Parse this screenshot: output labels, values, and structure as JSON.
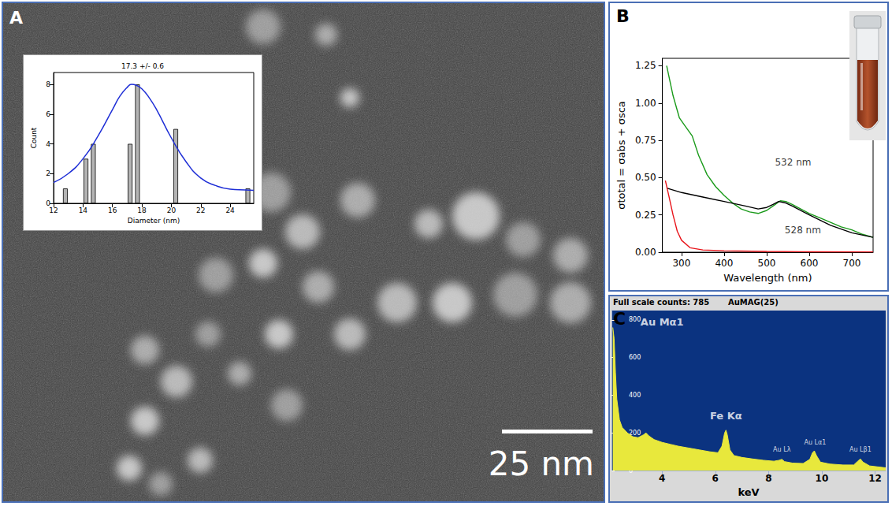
{
  "image": {
    "panel": "A",
    "scale_bar": "25 nm"
  },
  "chart_data": [
    {
      "type": "bar",
      "title": "17.3 +/- 0.6",
      "x_label": "Diameter (nm)",
      "y_label": "Count",
      "series": [
        {
          "type": "bar",
          "color": "#b4b4b4",
          "x": [
            12.8,
            14.2,
            14.7,
            17.2,
            17.7,
            20.3,
            25.2
          ],
          "values": [
            1,
            3,
            4,
            4,
            8,
            5,
            1
          ]
        },
        {
          "type": "line",
          "color": "#1f2fd6",
          "x": [
            12,
            13,
            14,
            15,
            16,
            16.5,
            17,
            17.3,
            17.6,
            18,
            18.5,
            19,
            20,
            21,
            22,
            23,
            24,
            25,
            25.6
          ],
          "values": [
            1.4,
            2.0,
            3.0,
            4.5,
            6.3,
            7.2,
            7.8,
            8.0,
            7.95,
            7.7,
            7.1,
            6.3,
            4.4,
            2.8,
            1.7,
            1.2,
            0.95,
            0.9,
            0.88
          ]
        }
      ],
      "xlim": [
        12,
        25.6
      ],
      "xticks": [
        12,
        14,
        16,
        18,
        20,
        22,
        24
      ],
      "ylim": [
        0,
        8.8
      ],
      "yticks": [
        0,
        2,
        4,
        6,
        8
      ]
    },
    {
      "type": "line",
      "panel": "B",
      "x_label": "Wavelength (nm)",
      "y_label": "σtotal = σabs + σsca",
      "series": [
        {
          "color": "#1a9a1a",
          "x": [
            265,
            280,
            295,
            310,
            325,
            340,
            360,
            380,
            400,
            420,
            440,
            460,
            480,
            500,
            515,
            532,
            545,
            560,
            580,
            600,
            625,
            650,
            675,
            700,
            725,
            750
          ],
          "values": [
            1.25,
            1.05,
            0.9,
            0.84,
            0.78,
            0.65,
            0.52,
            0.44,
            0.38,
            0.33,
            0.29,
            0.27,
            0.26,
            0.28,
            0.31,
            0.345,
            0.34,
            0.32,
            0.29,
            0.26,
            0.23,
            0.2,
            0.17,
            0.15,
            0.12,
            0.1
          ]
        },
        {
          "color": "#000000",
          "x": [
            265,
            300,
            350,
            400,
            450,
            480,
            500,
            515,
            528,
            545,
            560,
            600,
            650,
            700,
            750
          ],
          "values": [
            0.43,
            0.4,
            0.37,
            0.34,
            0.31,
            0.29,
            0.3,
            0.32,
            0.34,
            0.33,
            0.31,
            0.25,
            0.18,
            0.13,
            0.1
          ]
        },
        {
          "color": "#e8141a",
          "x": [
            262,
            270,
            280,
            290,
            300,
            320,
            350,
            400,
            500,
            600,
            750
          ],
          "values": [
            0.48,
            0.38,
            0.25,
            0.14,
            0.08,
            0.03,
            0.015,
            0.01,
            0.005,
            0.003,
            0.002
          ]
        }
      ],
      "annotations": [
        {
          "text": "532 nm",
          "x": 562,
          "y": 0.6
        },
        {
          "text": "528 nm",
          "x": 585,
          "y": 0.15
        }
      ],
      "xlim": [
        255,
        750
      ],
      "xticks": [
        300,
        400,
        500,
        600,
        700
      ],
      "ylim": [
        0,
        1.3
      ],
      "yticks": [
        {
          "value": 0,
          "label": "0.00"
        },
        0.25,
        {
          "value": 0.5,
          "label": "0.50"
        },
        0.75,
        {
          "value": 1,
          "label": "1.00"
        },
        1.25
      ]
    },
    {
      "type": "area",
      "panel": "C",
      "header": [
        "Full scale counts: 785",
        "AuMAG(25)"
      ],
      "x_label": "keV",
      "series": [
        {
          "color": "#e8e83c",
          "x": [
            2.15,
            2.2,
            2.25,
            2.3,
            2.4,
            2.5,
            2.7,
            2.9,
            3.1,
            3.3,
            3.4,
            3.5,
            3.7,
            4.0,
            4.3,
            4.6,
            5.0,
            5.4,
            5.8,
            6.1,
            6.25,
            6.35,
            6.4,
            6.45,
            6.55,
            6.7,
            7.0,
            7.4,
            7.8,
            8.2,
            8.4,
            8.5,
            8.6,
            8.9,
            9.3,
            9.55,
            9.65,
            9.72,
            9.8,
            9.95,
            10.3,
            10.8,
            11.2,
            11.35,
            11.45,
            11.55,
            11.8,
            12.1,
            12.4
          ],
          "values": [
            760,
            700,
            520,
            380,
            270,
            230,
            200,
            180,
            175,
            190,
            200,
            185,
            165,
            150,
            140,
            130,
            120,
            110,
            100,
            95,
            130,
            200,
            215,
            190,
            110,
            80,
            70,
            62,
            55,
            50,
            55,
            60,
            48,
            40,
            38,
            60,
            95,
            105,
            80,
            45,
            35,
            30,
            30,
            50,
            62,
            45,
            25,
            20,
            15
          ]
        }
      ],
      "annotations": [
        {
          "text": "Au Mα1",
          "x": 4.0,
          "y": 790
        },
        {
          "text": "Fe Kα",
          "x": 6.4,
          "y": 290
        },
        {
          "text": "Au Lλ",
          "x": 8.5,
          "y": 110
        },
        {
          "text": "Au Lα1",
          "x": 9.75,
          "y": 150
        },
        {
          "text": "Au Lβ1",
          "x": 11.45,
          "y": 110
        }
      ],
      "xlim": [
        2.1,
        12.4
      ],
      "xticks": [
        4,
        6,
        8,
        10,
        12
      ],
      "ylim": [
        0,
        850
      ],
      "yticks": [
        0,
        200,
        400,
        600,
        800
      ]
    }
  ]
}
